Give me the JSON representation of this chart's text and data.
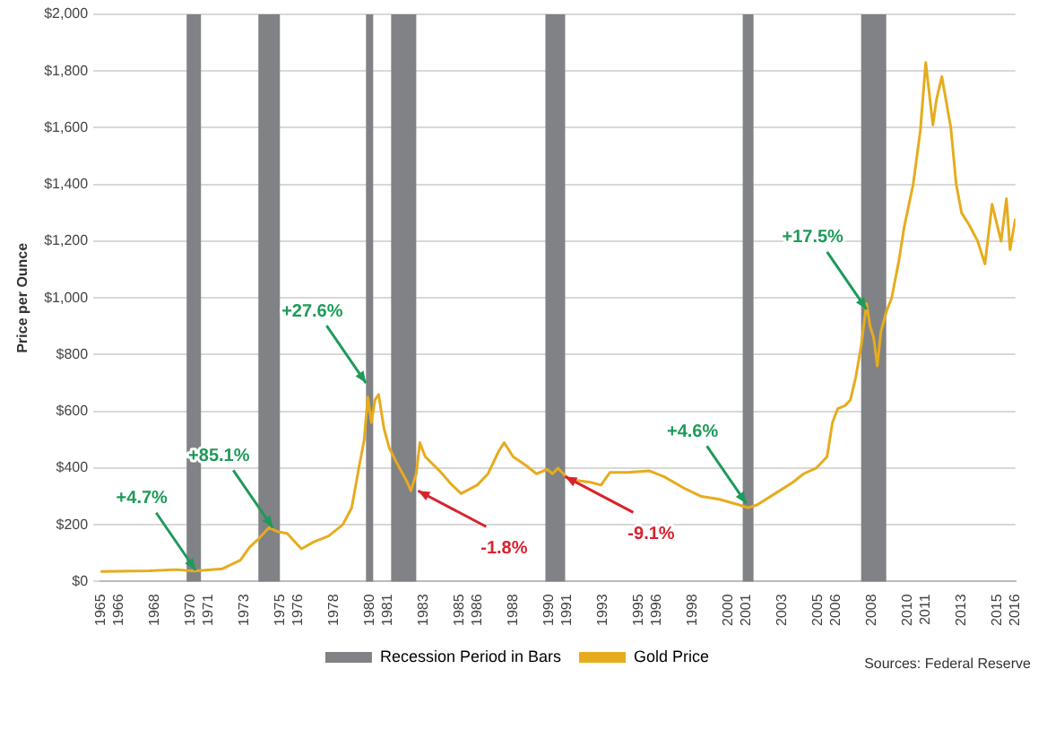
{
  "chart_data": {
    "type": "line",
    "ylabel": "Price per Ounce",
    "x": [
      1965,
      1967.7,
      1969.2,
      1970.2,
      1971.8,
      1972.8,
      1973.3,
      1973.8,
      1974.4,
      1974.9,
      1975.4,
      1976.2,
      1976.9,
      1977.7,
      1978.5,
      1979.0,
      1979.4,
      1979.7,
      1979.9,
      1980.1,
      1980.3,
      1980.5,
      1980.8,
      1981.1,
      1981.5,
      1982.1,
      1982.3,
      1982.6,
      1982.8,
      1983.1,
      1983.9,
      1984.6,
      1985.1,
      1986.0,
      1986.6,
      1987.2,
      1987.5,
      1988.0,
      1988.7,
      1989.3,
      1989.9,
      1990.2,
      1990.5,
      1991.1,
      1992.3,
      1992.9,
      1993.4,
      1994.4,
      1995.6,
      1996.4,
      1997.5,
      1998.5,
      1999.5,
      2000.6,
      2001.1,
      2001.6,
      2002.6,
      2003.6,
      2004.2,
      2004.9,
      2005.5,
      2005.8,
      2006.1,
      2006.5,
      2006.8,
      2007.1,
      2007.4,
      2007.7,
      2007.9,
      2008.1,
      2008.3,
      2008.5,
      2008.8,
      2009.1,
      2009.5,
      2009.8,
      2010.3,
      2010.7,
      2011.0,
      2011.4,
      2011.6,
      2011.9,
      2012.4,
      2012.7,
      2013.0,
      2013.4,
      2013.9,
      2014.3,
      2014.7,
      2015.2,
      2015.5,
      2015.7,
      2016.0
    ],
    "series": [
      {
        "name": "Gold Price",
        "color": "#e6ac1e",
        "values": [
          35,
          38,
          42,
          37,
          45,
          75,
          120,
          150,
          190,
          175,
          170,
          115,
          140,
          160,
          200,
          260,
          400,
          500,
          650,
          560,
          640,
          660,
          540,
          470,
          420,
          350,
          320,
          380,
          490,
          440,
          390,
          340,
          310,
          340,
          380,
          460,
          490,
          440,
          410,
          380,
          395,
          380,
          400,
          360,
          350,
          340,
          385,
          385,
          390,
          370,
          330,
          300,
          290,
          270,
          260,
          270,
          310,
          350,
          380,
          400,
          440,
          560,
          610,
          620,
          640,
          720,
          830,
          980,
          900,
          860,
          760,
          880,
          950,
          1000,
          1130,
          1250,
          1400,
          1590,
          1830,
          1610,
          1700,
          1780,
          1600,
          1400,
          1300,
          1260,
          1200,
          1120,
          1330,
          1200,
          1350,
          1170,
          1280
        ]
      }
    ],
    "xlim": [
      1965,
      2016
    ],
    "xticks": [
      1965,
      1966,
      1968,
      1970,
      1971,
      1973,
      1975,
      1976,
      1978,
      1980,
      1981,
      1983,
      1985,
      1986,
      1988,
      1990,
      1991,
      1993,
      1995,
      1996,
      1998,
      2000,
      2001,
      2003,
      2005,
      2006,
      2008,
      2010,
      2011,
      2013,
      2015,
      2016
    ],
    "ylim": [
      0,
      2000
    ],
    "yticks": [
      {
        "value": 0,
        "label": "$0"
      },
      {
        "value": 200,
        "label": "$200"
      },
      {
        "value": 400,
        "label": "$400"
      },
      {
        "value": 600,
        "label": "$600"
      },
      {
        "value": 800,
        "label": "$800"
      },
      {
        "value": 1000,
        "label": "$1,000"
      },
      {
        "value": 1200,
        "label": "$1,200"
      },
      {
        "value": 1400,
        "label": "$1,400"
      },
      {
        "value": 1600,
        "label": "$1,600"
      },
      {
        "value": 1800,
        "label": "$1,800"
      },
      {
        "value": 2000,
        "label": "$2,000"
      }
    ],
    "bands": [
      {
        "axis": "x",
        "from": 1969.8,
        "to": 1970.6,
        "label": "Recession Period in Bars",
        "color": "#808285"
      },
      {
        "axis": "x",
        "from": 1973.8,
        "to": 1975.0,
        "color": "#808285"
      },
      {
        "axis": "x",
        "from": 1979.8,
        "to": 1980.2,
        "color": "#808285"
      },
      {
        "axis": "x",
        "from": 1981.2,
        "to": 1982.6,
        "color": "#808285"
      },
      {
        "axis": "x",
        "from": 1989.8,
        "to": 1990.9,
        "color": "#808285"
      },
      {
        "axis": "x",
        "from": 2000.8,
        "to": 2001.4,
        "color": "#808285"
      },
      {
        "axis": "x",
        "from": 2007.4,
        "to": 2008.8,
        "color": "#808285"
      }
    ],
    "annotations": [
      {
        "text": "+4.7%",
        "x": 1970.3,
        "y": 40
      },
      {
        "text": "+85.1%",
        "x": 1974.6,
        "y": 190
      },
      {
        "text": "+27.6%",
        "x": 1979.8,
        "y": 700
      },
      {
        "text": "-1.8%",
        "x": 1982.7,
        "y": 320
      },
      {
        "text": "-9.1%",
        "x": 1990.9,
        "y": 370
      },
      {
        "text": "+4.6%",
        "x": 2001.0,
        "y": 275
      },
      {
        "text": "+17.5%",
        "x": 2007.7,
        "y": 960
      },
      "Sources: Federal Reserve"
    ],
    "grid": "y",
    "legend": "bottom",
    "marker": "none",
    "line_style": "solid"
  }
}
